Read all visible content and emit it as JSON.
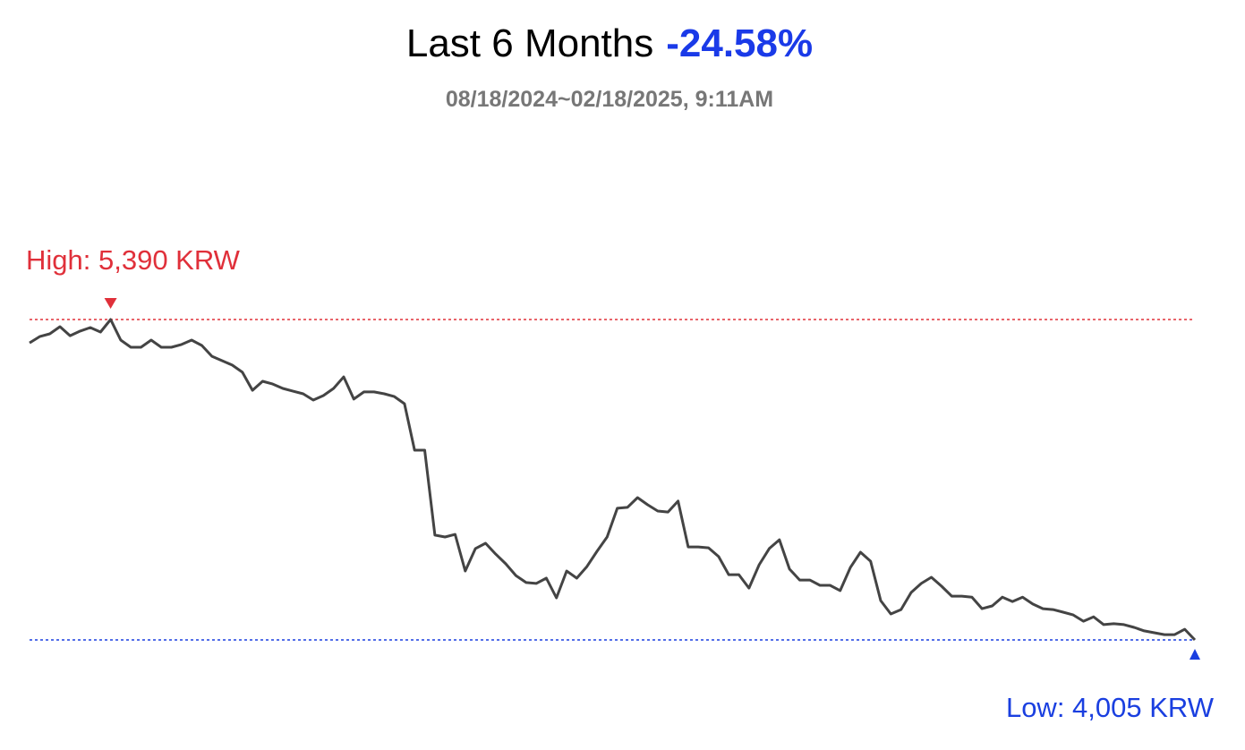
{
  "chart_data": {
    "type": "line",
    "title": "Last 6 Months",
    "change": "-24.58%",
    "subtitle": "08/18/2024~02/18/2025, 9:11AM",
    "high": {
      "value": 5390,
      "label": "High: 5,390 KRW"
    },
    "low": {
      "value": 4005,
      "label": "Low: 4,005 KRW"
    },
    "color": "#444444",
    "high_color": "#e0303a",
    "low_color": "#1a3fe0",
    "values": [
      5289,
      5316,
      5328,
      5359,
      5320,
      5340,
      5355,
      5336,
      5390,
      5301,
      5270,
      5270,
      5301,
      5270,
      5270,
      5282,
      5301,
      5278,
      5231,
      5212,
      5193,
      5162,
      5084,
      5123,
      5111,
      5092,
      5080,
      5069,
      5042,
      5061,
      5092,
      5142,
      5046,
      5077,
      5077,
      5069,
      5057,
      5026,
      4825,
      4825,
      4458,
      4450,
      4461,
      4303,
      4400,
      4423,
      4376,
      4334,
      4283,
      4253,
      4249,
      4272,
      4187,
      4303,
      4272,
      4322,
      4388,
      4450,
      4574,
      4578,
      4620,
      4589,
      4562,
      4558,
      4605,
      4407,
      4407,
      4403,
      4365,
      4287,
      4287,
      4229,
      4330,
      4400,
      4438,
      4311,
      4264,
      4264,
      4241,
      4241,
      4218,
      4318,
      4384,
      4345,
      4175,
      4117,
      4136,
      4210,
      4249,
      4276,
      4237,
      4194,
      4194,
      4190,
      4140,
      4152,
      4190,
      4171,
      4190,
      4160,
      4140,
      4136,
      4125,
      4113,
      4086,
      4105,
      4071,
      4075,
      4071,
      4059,
      4044,
      4036,
      4028,
      4028,
      4051,
      4005
    ]
  }
}
